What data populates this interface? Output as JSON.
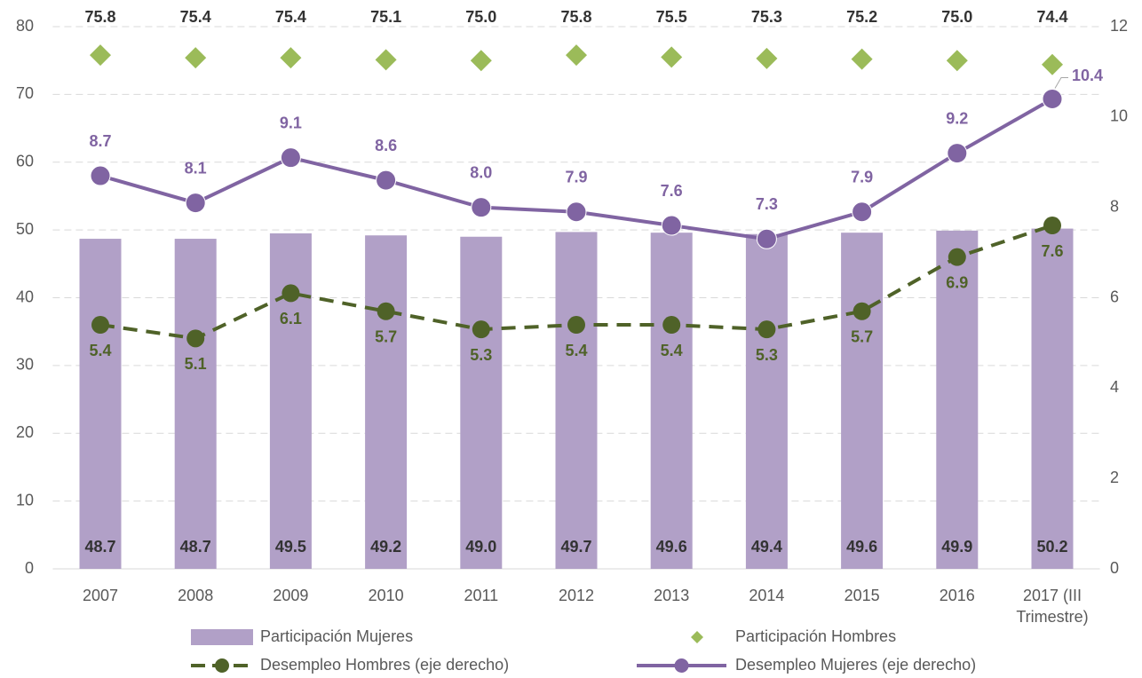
{
  "chart_data": {
    "type": "bar",
    "categories": [
      "2007",
      "2008",
      "2009",
      "2010",
      "2011",
      "2012",
      "2013",
      "2014",
      "2015",
      "2016",
      "2017 (III Trimestre)"
    ],
    "ylim": [
      0,
      80
    ],
    "yticks": [
      0,
      10,
      20,
      30,
      40,
      50,
      60,
      70,
      80
    ],
    "y2lim": [
      0,
      12
    ],
    "y2ticks": [
      0,
      2,
      4,
      6,
      8,
      10,
      12
    ],
    "grid": true,
    "series": [
      {
        "name": "Participación Mujeres",
        "type": "bar",
        "color": "#b1a0c7",
        "values": [
          48.7,
          48.7,
          49.5,
          49.2,
          49.0,
          49.7,
          49.6,
          49.4,
          49.6,
          49.9,
          50.2
        ],
        "value_labels": [
          "48.7",
          "48.7",
          "49.5",
          "49.2",
          "49.0",
          "49.7",
          "49.6",
          "49.4",
          "49.6",
          "49.9",
          "50.2"
        ]
      },
      {
        "name": "Participación Hombres",
        "type": "scatter",
        "color": "#9bbb59",
        "values": [
          75.8,
          75.4,
          75.4,
          75.1,
          75.0,
          75.8,
          75.5,
          75.3,
          75.2,
          75.0,
          74.4
        ],
        "value_labels": [
          "75.8",
          "75.4",
          "75.4",
          "75.1",
          "75.0",
          "75.8",
          "75.5",
          "75.3",
          "75.2",
          "75.0",
          "74.4"
        ]
      },
      {
        "name": "Desempleo Hombres (eje derecho)",
        "type": "line",
        "axis": "y2",
        "linestyle": "dashed",
        "color": "#4f6228",
        "values": [
          5.4,
          5.1,
          6.1,
          5.7,
          5.3,
          5.4,
          5.4,
          5.3,
          5.7,
          6.9,
          7.6
        ],
        "value_labels": [
          "5.4",
          "5.1",
          "6.1",
          "5.7",
          "5.3",
          "5.4",
          "5.4",
          "5.3",
          "5.7",
          "6.9",
          "7.6"
        ]
      },
      {
        "name": "Desempleo Mujeres (eje derecho)",
        "type": "line",
        "axis": "y2",
        "linestyle": "solid",
        "color": "#8064a2",
        "values": [
          8.7,
          8.1,
          9.1,
          8.6,
          8.0,
          7.9,
          7.6,
          7.3,
          7.9,
          9.2,
          10.4
        ],
        "value_labels": [
          "8.7",
          "8.1",
          "9.1",
          "8.6",
          "8.0",
          "7.9",
          "7.6",
          "7.3",
          "7.9",
          "9.2",
          "10.4"
        ]
      }
    ]
  }
}
